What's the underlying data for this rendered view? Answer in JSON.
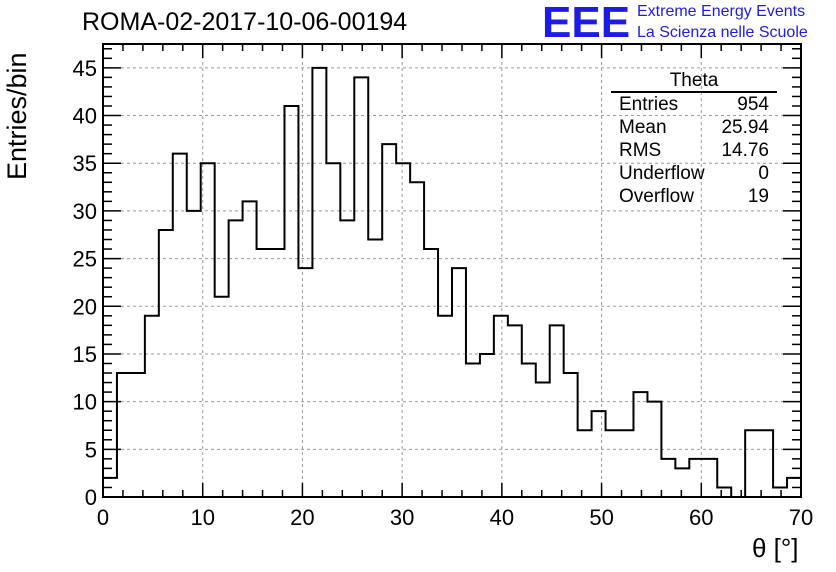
{
  "chart_data": {
    "type": "bar",
    "title": "ROMA-02-2017-10-06-00194",
    "xlabel": "θ [°]",
    "ylabel": "Entries/bin",
    "xlim": [
      0,
      70
    ],
    "ylim": [
      0,
      47.5
    ],
    "grid": true,
    "bin_edges": [
      0,
      1.4,
      2.8,
      4.2,
      5.6,
      7,
      8.4,
      9.8,
      11.2,
      12.6,
      14,
      15.4,
      16.8,
      18.2,
      19.6,
      21,
      22.4,
      23.8,
      25.2,
      26.6,
      28,
      29.4,
      30.8,
      32.2,
      33.6,
      35,
      36.4,
      37.8,
      39.2,
      40.6,
      42,
      43.4,
      44.8,
      46.2,
      47.6,
      49,
      50.4,
      51.8,
      53.2,
      54.6,
      56,
      57.4,
      58.8,
      60.2,
      61.6,
      63,
      64.4,
      65.8,
      67.2,
      68.6,
      70
    ],
    "values": [
      2,
      13,
      13,
      19,
      28,
      36,
      30,
      35,
      21,
      29,
      31,
      26,
      26,
      41,
      24,
      45,
      35,
      29,
      44,
      27,
      37,
      35,
      33,
      26,
      19,
      24,
      14,
      15,
      19,
      18,
      14,
      12,
      18,
      13,
      7,
      9,
      7,
      7,
      11,
      10,
      4,
      3,
      4,
      4,
      1,
      0,
      7,
      7,
      1,
      2
    ],
    "x_ticks": [
      "0",
      "10",
      "20",
      "30",
      "40",
      "50",
      "60",
      "70"
    ],
    "y_ticks": [
      "0",
      "5",
      "10",
      "15",
      "20",
      "25",
      "30",
      "35",
      "40",
      "45"
    ],
    "stats": {
      "name": "Theta",
      "rows": [
        {
          "label": "Entries",
          "value": "954"
        },
        {
          "label": "Mean",
          "value": "25.94"
        },
        {
          "label": "RMS",
          "value": "14.76"
        },
        {
          "label": "Underflow",
          "value": "0"
        },
        {
          "label": "Overflow",
          "value": "19"
        }
      ]
    }
  },
  "logo": {
    "text": "EEE",
    "line1": "Extreme Energy Events",
    "line2": "La Scienza nelle Scuole",
    "color": "#1c1ce6"
  }
}
